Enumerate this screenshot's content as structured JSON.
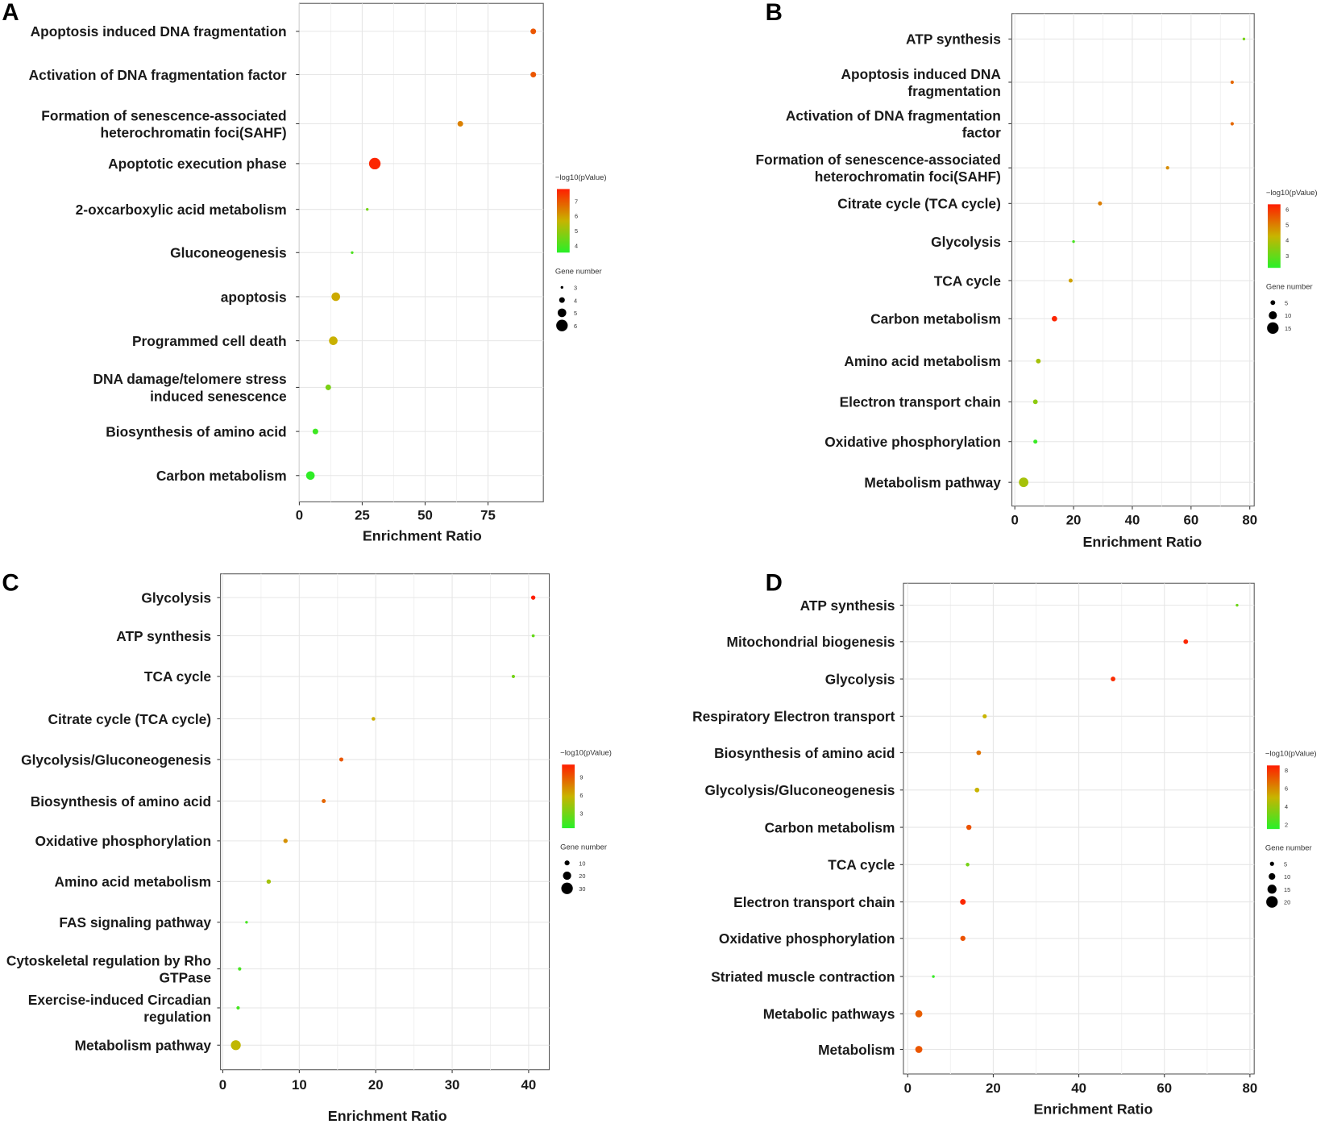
{
  "chart_data": [
    {
      "panel": "A",
      "type": "scatter",
      "xlabel": "Enrichment Ratio",
      "xticks": [
        0,
        25,
        50,
        75
      ],
      "xlim": [
        0,
        97
      ],
      "color_legend": {
        "title": "−log10(pValue)",
        "ticks": [
          4,
          5,
          6,
          7
        ],
        "range": [
          3.5,
          7.8
        ]
      },
      "size_legend": {
        "title": "Gene number",
        "values": [
          3,
          4,
          5,
          6
        ]
      },
      "categories": [
        [
          "Apoptosis induced DNA fragmentation"
        ],
        [
          "Activation of DNA fragmentation factor"
        ],
        [
          "Formation of senescence-associated",
          "heterochromatin foci(SAHF)"
        ],
        [
          "Apoptotic execution phase"
        ],
        [
          "2-oxcarboxylic acid metabolism"
        ],
        [
          "Gluconeogenesis"
        ],
        [
          "apoptosis"
        ],
        [
          "Programmed cell death"
        ],
        [
          "DNA damage/telomere stress",
          "induced senescence"
        ],
        [
          "Biosynthesis of amino acid"
        ],
        [
          "Carbon metabolism"
        ]
      ],
      "x": [
        93,
        93,
        64,
        30,
        27,
        21,
        14.5,
        13.5,
        11.5,
        6.4,
        4.4
      ],
      "neg_log10_p": [
        7.0,
        7.0,
        6.4,
        7.7,
        4.5,
        4.0,
        5.8,
        5.7,
        4.6,
        3.8,
        3.6
      ],
      "gene_number": [
        4,
        4,
        4,
        6,
        3,
        3,
        5,
        5,
        4,
        4,
        5
      ]
    },
    {
      "panel": "B",
      "type": "scatter",
      "xlabel": "Enrichment Ratio",
      "xticks": [
        0,
        20,
        40,
        60,
        80
      ],
      "xlim": [
        -1,
        81.5
      ],
      "color_legend": {
        "title": "−log10(pValue)",
        "ticks": [
          3,
          4,
          5,
          6
        ],
        "range": [
          2.2,
          6.3
        ]
      },
      "size_legend": {
        "title": "Gene number",
        "values": [
          5,
          10,
          15
        ]
      },
      "categories": [
        [
          "ATP synthesis"
        ],
        [
          "Apoptosis induced DNA",
          "fragmentation"
        ],
        [
          "Activation of DNA fragmentation",
          "factor"
        ],
        [
          "Formation of senescence-associated",
          "heterochromatin foci(SAHF)"
        ],
        [
          "Citrate cycle (TCA cycle)"
        ],
        [
          "Glycolysis"
        ],
        [
          "TCA cycle"
        ],
        [
          "Carbon metabolism"
        ],
        [
          "Amino acid metabolism"
        ],
        [
          "Electron transport chain"
        ],
        [
          "Oxidative phosphorylation"
        ],
        [
          "Metabolism pathway"
        ]
      ],
      "x": [
        78,
        74,
        74,
        52,
        29,
        20,
        19,
        13.5,
        8,
        7,
        7,
        3
      ],
      "neg_log10_p": [
        3.2,
        5.3,
        5.3,
        4.8,
        5.0,
        2.6,
        4.5,
        6.2,
        3.8,
        3.5,
        2.4,
        3.8
      ],
      "gene_number": [
        2,
        3,
        3,
        3,
        4,
        2,
        4,
        6,
        5,
        5,
        4,
        12
      ]
    },
    {
      "panel": "C",
      "type": "scatter",
      "xlabel": "Enrichment Ratio",
      "xticks": [
        0,
        10,
        20,
        30,
        40
      ],
      "xlim": [
        -0.3,
        42.7
      ],
      "color_legend": {
        "title": "−log10(pValue)",
        "ticks": [
          3,
          6,
          9
        ],
        "range": [
          0.5,
          11
        ]
      },
      "size_legend": {
        "title": "Gene number",
        "values": [
          10,
          20,
          30
        ]
      },
      "categories": [
        [
          "Glycolysis"
        ],
        [
          "ATP synthesis"
        ],
        [
          "TCA cycle"
        ],
        [
          "Citrate cycle (TCA cycle)"
        ],
        [
          "Glycolysis/Gluconeogenesis"
        ],
        [
          "Biosynthesis of amino acid"
        ],
        [
          "Oxidative phosphorylation"
        ],
        [
          "Amino acid metabolism"
        ],
        [
          "FAS signaling pathway"
        ],
        [
          "Cytoskeletal regulation by Rho",
          "GTPase"
        ],
        [
          "Exercise-induced Circadian",
          "regulation"
        ],
        [
          "Metabolism pathway"
        ]
      ],
      "x": [
        40.6,
        40.6,
        38,
        19.7,
        15.5,
        13.2,
        8.2,
        6,
        3.1,
        2.2,
        2,
        1.7
      ],
      "neg_log10_p": [
        11,
        2.5,
        3,
        6,
        9,
        8.5,
        7,
        4.5,
        1.5,
        1.5,
        1.5,
        5.5
      ],
      "gene_number": [
        8,
        4,
        5,
        6,
        7,
        7,
        8,
        8,
        3,
        5,
        5,
        25
      ]
    },
    {
      "panel": "D",
      "type": "scatter",
      "xlabel": "Enrichment Ratio",
      "xticks": [
        0,
        20,
        40,
        60,
        80
      ],
      "xlim": [
        -1,
        81
      ],
      "color_legend": {
        "title": "−log10(pValue)",
        "ticks": [
          2,
          4,
          6,
          8
        ],
        "range": [
          1.5,
          8.5
        ]
      },
      "size_legend": {
        "title": "Gene number",
        "values": [
          5,
          10,
          15,
          20
        ]
      },
      "categories": [
        [
          "ATP synthesis"
        ],
        [
          "Mitochondrial biogenesis"
        ],
        [
          "Glycolysis"
        ],
        [
          "Respiratory Electron transport"
        ],
        [
          "Biosynthesis of amino acid"
        ],
        [
          "Glycolysis/Gluconeogenesis"
        ],
        [
          "Carbon metabolism"
        ],
        [
          "TCA cycle"
        ],
        [
          "Electron transport chain"
        ],
        [
          "Oxidative phosphorylation"
        ],
        [
          "Striated muscle contraction"
        ],
        [
          "Metabolic pathways"
        ],
        [
          "Metabolism"
        ]
      ],
      "x": [
        77,
        65,
        48,
        18,
        16.6,
        16.2,
        14.3,
        14,
        12.9,
        12.9,
        6,
        2.6,
        2.6
      ],
      "neg_log10_p": [
        3,
        8.3,
        8.2,
        5,
        6.5,
        5,
        7.3,
        3.2,
        8.3,
        7.3,
        1.8,
        7,
        7.2
      ],
      "gene_number": [
        2,
        6,
        6,
        5,
        6,
        6,
        7,
        4,
        8,
        7,
        2,
        11,
        11
      ]
    }
  ]
}
